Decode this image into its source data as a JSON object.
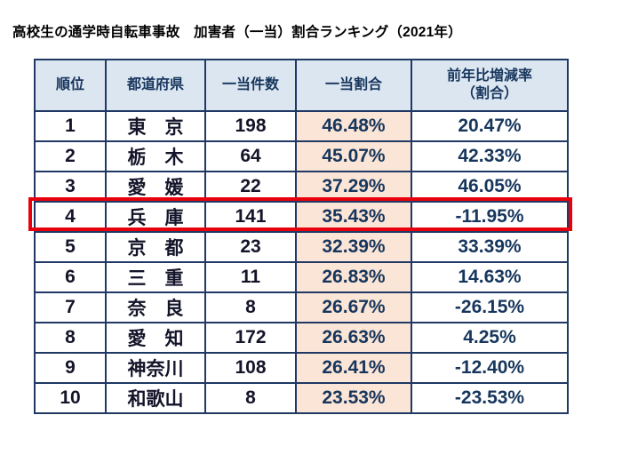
{
  "title": "高校生の通学時自転車事故　加害者（一当）割合ランキング（2021年）",
  "colors": {
    "header_bg": "#dce6f1",
    "ratio_column_bg": "#fbe5d6",
    "table_border": "#1f3864",
    "highlight_border": "#e8000d",
    "header_text": "#17365d"
  },
  "chart_data": {
    "type": "table",
    "columns": [
      "順位",
      "都道府県",
      "一当件数",
      "一当割合",
      "前年比増減率\n（割合）"
    ],
    "rows": [
      {
        "rank": "1",
        "prefecture": "東　京",
        "count": "198",
        "ratio": "46.48%",
        "yoy": "20.47%"
      },
      {
        "rank": "2",
        "prefecture": "栃　木",
        "count": "64",
        "ratio": "45.07%",
        "yoy": "42.33%"
      },
      {
        "rank": "3",
        "prefecture": "愛　媛",
        "count": "22",
        "ratio": "37.29%",
        "yoy": "46.05%"
      },
      {
        "rank": "4",
        "prefecture": "兵　庫",
        "count": "141",
        "ratio": "35.43%",
        "yoy": "-11.95%"
      },
      {
        "rank": "5",
        "prefecture": "京　都",
        "count": "23",
        "ratio": "32.39%",
        "yoy": "33.39%"
      },
      {
        "rank": "6",
        "prefecture": "三　重",
        "count": "11",
        "ratio": "26.83%",
        "yoy": "14.63%"
      },
      {
        "rank": "7",
        "prefecture": "奈　良",
        "count": "8",
        "ratio": "26.67%",
        "yoy": "-26.15%"
      },
      {
        "rank": "8",
        "prefecture": "愛　知",
        "count": "172",
        "ratio": "26.63%",
        "yoy": "4.25%"
      },
      {
        "rank": "9",
        "prefecture": "神奈川",
        "count": "108",
        "ratio": "26.41%",
        "yoy": "-12.40%"
      },
      {
        "rank": "10",
        "prefecture": "和歌山",
        "count": "8",
        "ratio": "23.53%",
        "yoy": "-23.53%"
      }
    ],
    "highlighted_rank": "4"
  }
}
